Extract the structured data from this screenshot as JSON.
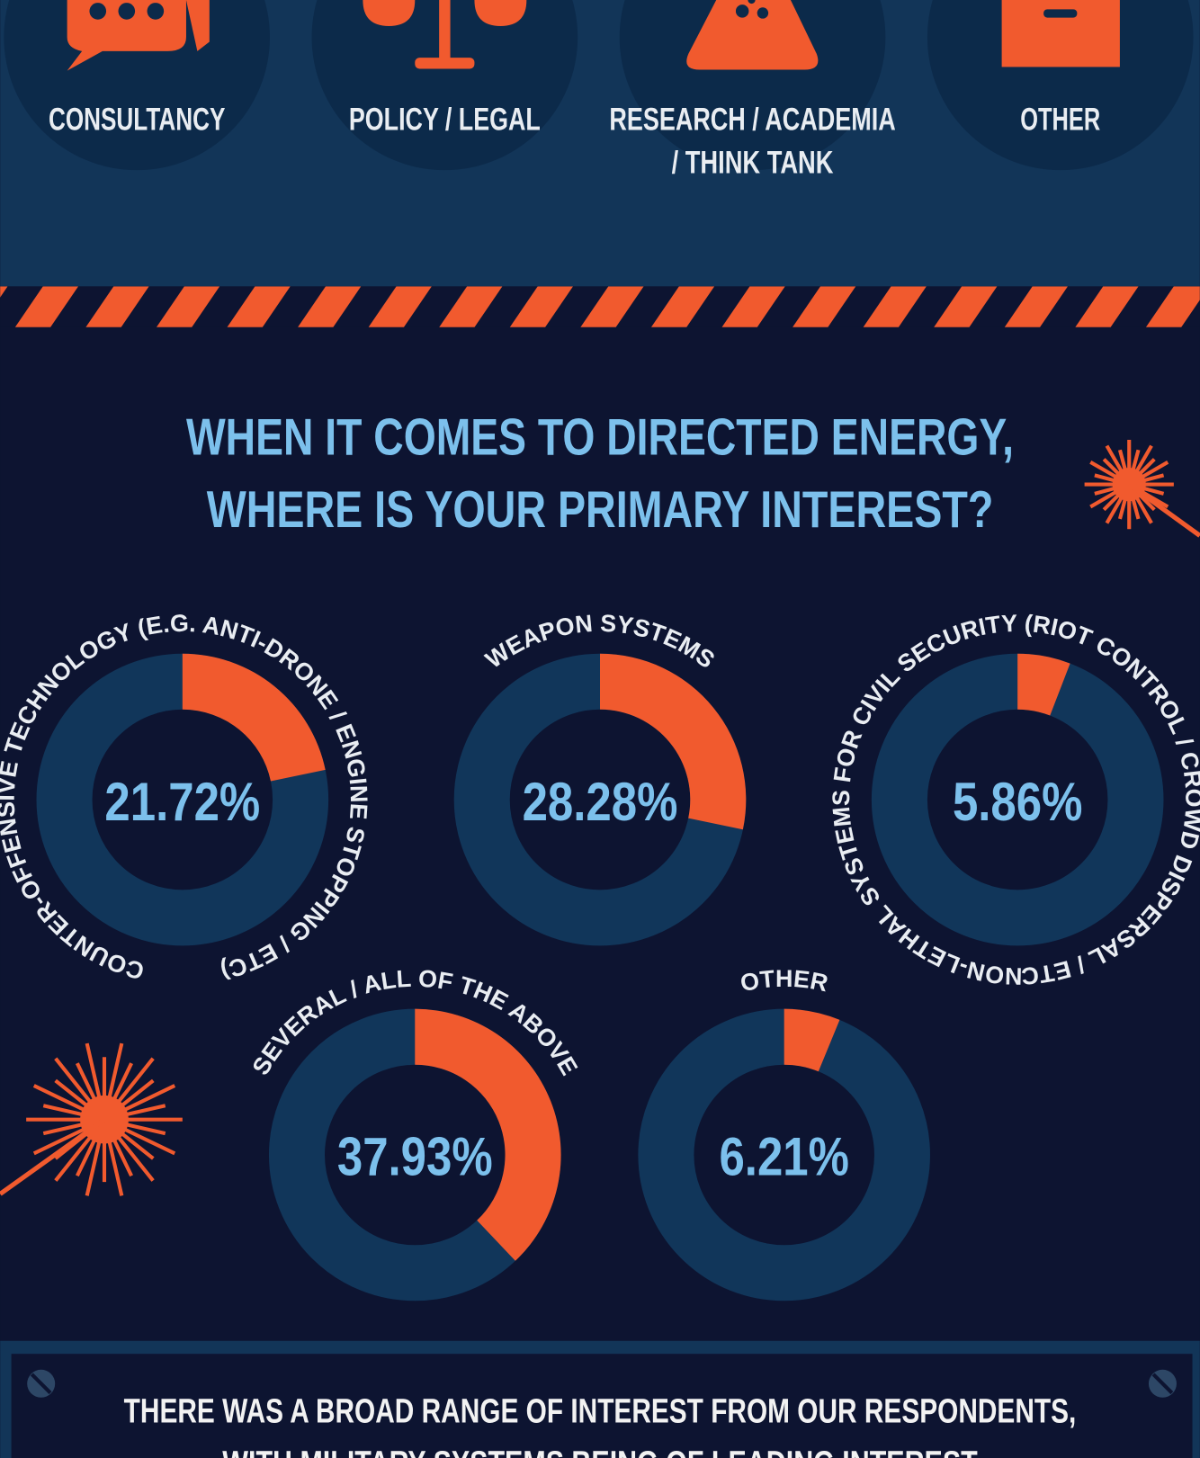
{
  "roles": [
    "CONSULTANCY",
    "POLICY / LEGAL",
    "RESEARCH / ACADEMIA",
    "/ THINK TANK",
    "OTHER"
  ],
  "heading": [
    "WHEN IT COMES TO DIRECTED ENERGY,",
    "WHERE IS YOUR PRIMARY INTEREST?"
  ],
  "chart_data": [
    {
      "type": "donut",
      "title": "COUNTER-OFFENSIVE TECHNOLOGY (E.G. ANTI-DRONE / ENGINE STOPPING / ETC)",
      "values": [
        21.72
      ],
      "value_labels": [
        "21.72%"
      ],
      "color": "#f15a2e"
    },
    {
      "type": "donut",
      "title": "WEAPON SYSTEMS",
      "values": [
        28.28
      ],
      "value_labels": [
        "28.28%"
      ],
      "color": "#f15a2e"
    },
    {
      "type": "donut",
      "title": "NON-LETHAL SYSTEMS FOR CIVIL SECURITY (RIOT CONTROL / CROWD DISPERSAL / ETC)",
      "values": [
        5.86
      ],
      "value_labels": [
        "5.86%"
      ],
      "color": "#f15a2e"
    },
    {
      "type": "donut",
      "title": "SEVERAL / ALL OF THE ABOVE",
      "values": [
        37.93
      ],
      "value_labels": [
        "37.93%"
      ],
      "color": "#f15a2e"
    },
    {
      "type": "donut",
      "title": "OTHER",
      "values": [
        6.21
      ],
      "value_labels": [
        "6.21%"
      ],
      "color": "#f15a2e"
    }
  ],
  "footer": [
    "THERE WAS A BROAD RANGE OF INTEREST FROM OUR RESPONDENTS,",
    "WITH MILITARY SYSTEMS BEING OF LEADING INTEREST"
  ]
}
